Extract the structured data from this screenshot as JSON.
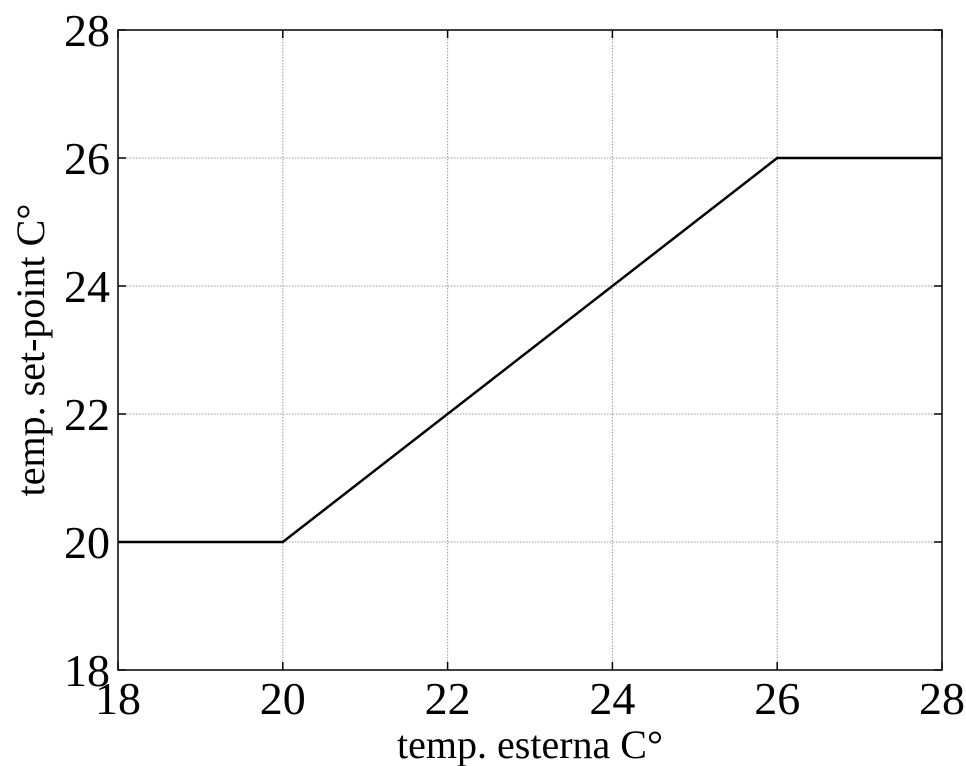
{
  "chart_data": {
    "type": "line",
    "title": "",
    "xlabel": "temp. esterna C°",
    "ylabel": "temp. set-point C°",
    "xlim": [
      18,
      28
    ],
    "ylim": [
      18,
      28
    ],
    "xticks": [
      18,
      20,
      22,
      24,
      26,
      28
    ],
    "yticks": [
      18,
      20,
      22,
      24,
      26,
      28
    ],
    "grid": true,
    "series": [
      {
        "color": "#000000",
        "x": [
          18,
          20,
          26,
          28
        ],
        "y": [
          20,
          20,
          26,
          26
        ]
      }
    ]
  }
}
